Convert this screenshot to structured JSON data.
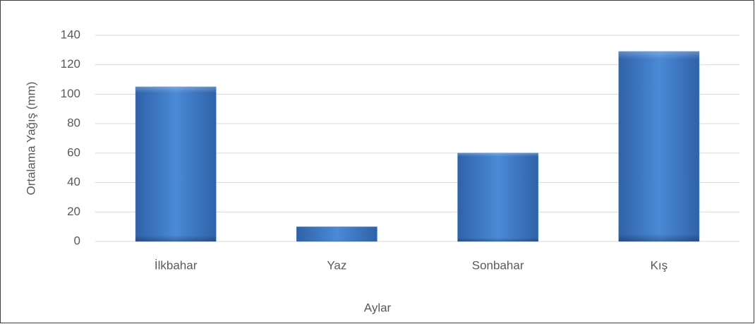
{
  "chart_data": {
    "type": "bar",
    "categories": [
      "İlkbahar",
      "Yaz",
      "Sonbahar",
      "Kış"
    ],
    "values": [
      105,
      10,
      60,
      129
    ],
    "color": "#3f7fcf",
    "ylim": [
      0,
      140
    ],
    "yticks": [
      0,
      20,
      40,
      60,
      80,
      100,
      120,
      140
    ],
    "grid": true,
    "x_label": "Aylar",
    "y_label": "Ortalama Yağış (mm)"
  }
}
